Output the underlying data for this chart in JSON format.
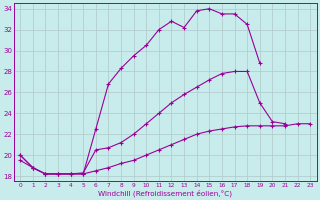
{
  "xlabel": "Windchill (Refroidissement éolien,°C)",
  "bg_color": "#c8ecec",
  "line_color": "#990099",
  "grid_color": "#b0c8c8",
  "xlim": [
    -0.5,
    23.5
  ],
  "ylim": [
    17.5,
    34.5
  ],
  "xticks": [
    0,
    1,
    2,
    3,
    4,
    5,
    6,
    7,
    8,
    9,
    10,
    11,
    12,
    13,
    14,
    15,
    16,
    17,
    18,
    19,
    20,
    21,
    22,
    23
  ],
  "yticks": [
    18,
    20,
    22,
    24,
    26,
    28,
    30,
    32,
    34
  ],
  "series": [
    {
      "x": [
        0,
        1,
        2,
        3,
        4,
        5,
        6,
        7,
        8,
        9,
        10,
        11,
        12,
        13,
        14,
        15,
        16,
        17,
        18,
        19,
        20,
        21,
        22,
        23
      ],
      "y": [
        20.0,
        18.8,
        18.2,
        18.2,
        18.2,
        18.2,
        22.5,
        26.8,
        28.3,
        29.5,
        30.5,
        32.0,
        32.8,
        32.2,
        33.8,
        34.0,
        33.5,
        33.5,
        32.5,
        28.8,
        null,
        null,
        null,
        null
      ]
    },
    {
      "x": [
        0,
        1,
        2,
        3,
        4,
        5,
        6,
        7,
        8,
        9,
        10,
        11,
        12,
        13,
        14,
        15,
        16,
        17,
        18,
        19,
        20,
        21,
        22,
        23
      ],
      "y": [
        19.5,
        18.8,
        18.2,
        18.2,
        18.2,
        18.3,
        20.5,
        20.7,
        21.2,
        22.0,
        23.0,
        24.0,
        25.0,
        25.8,
        26.5,
        27.2,
        27.8,
        28.0,
        28.0,
        25.0,
        23.2,
        23.0,
        null,
        null
      ]
    },
    {
      "x": [
        0,
        1,
        2,
        3,
        4,
        5,
        6,
        7,
        8,
        9,
        10,
        11,
        12,
        13,
        14,
        15,
        16,
        17,
        18,
        19,
        20,
        21,
        22,
        23
      ],
      "y": [
        20.0,
        18.8,
        18.2,
        18.2,
        18.2,
        18.2,
        18.5,
        18.8,
        19.2,
        19.5,
        20.0,
        20.5,
        21.0,
        21.5,
        22.0,
        22.3,
        22.5,
        22.7,
        22.8,
        22.8,
        22.8,
        22.8,
        23.0,
        23.0
      ]
    }
  ]
}
